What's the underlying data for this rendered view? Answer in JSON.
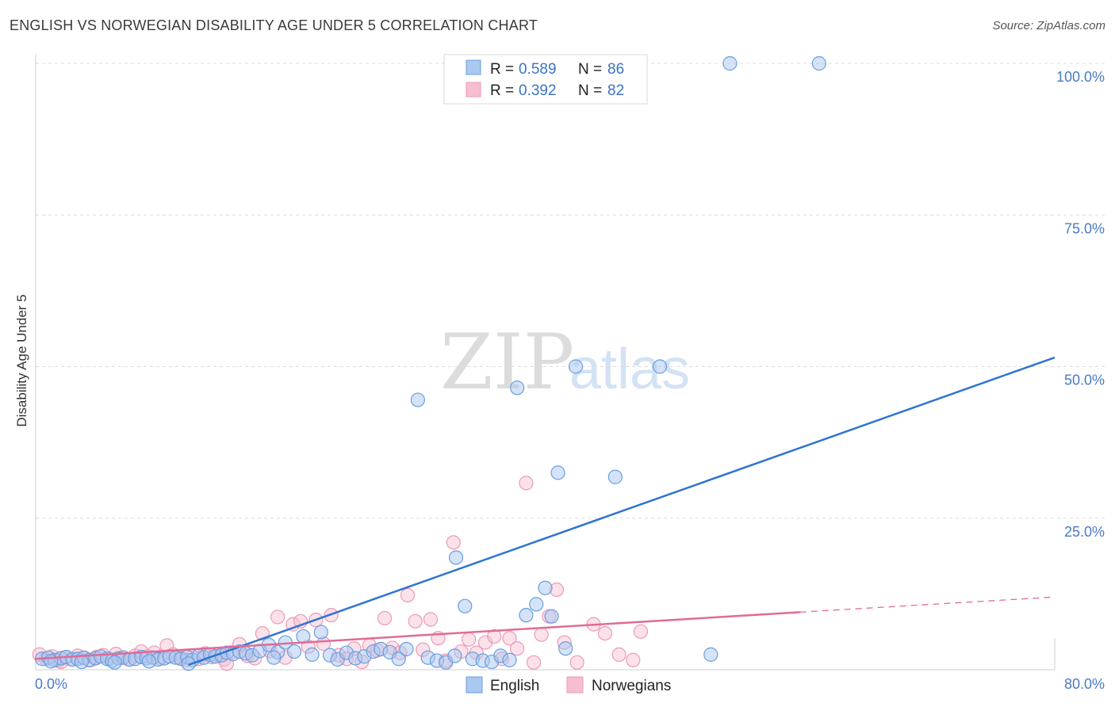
{
  "header": {
    "title": "ENGLISH VS NORWEGIAN DISABILITY AGE UNDER 5 CORRELATION CHART",
    "source": "Source: ZipAtlas.com"
  },
  "watermark": {
    "zip": "ZIP",
    "atlas": "atlas"
  },
  "legend_top": {
    "rows": [
      {
        "r_label": "R = ",
        "r_value": "0.589",
        "n_label": "N = ",
        "n_value": "86"
      },
      {
        "r_label": "R = ",
        "r_value": "0.392",
        "n_label": "N = ",
        "n_value": "82"
      }
    ]
  },
  "legend_bottom": {
    "english": "English",
    "norwegians": "Norwegians"
  },
  "colors": {
    "english_fill": "#aac8f0",
    "english_stroke": "#6b9ee0",
    "english_line": "#2f74d0",
    "norwegian_fill": "#f7bdd0",
    "norwegian_stroke": "#ec9ab5",
    "norwegian_line": "#e06b95",
    "grid": "#dcdcdc",
    "tick": "#4a7ac9"
  },
  "chart_data": {
    "type": "scatter",
    "title": "ENGLISH VS NORWEGIAN DISABILITY AGE UNDER 5 CORRELATION CHART",
    "xlabel": "",
    "ylabel": "Disability Age Under 5",
    "xlim": [
      0,
      80
    ],
    "ylim": [
      0,
      100
    ],
    "x_tick_labels": [
      "0.0%",
      "80.0%"
    ],
    "y_tick_values": [
      100,
      75,
      50,
      25
    ],
    "y_tick_labels": [
      "100.0%",
      "75.0%",
      "50.0%",
      "25.0%"
    ],
    "series": [
      {
        "name": "English",
        "r": 0.589,
        "n": 86,
        "trend": {
          "x": [
            12,
            80
          ],
          "y": [
            0.8,
            51.5
          ]
        },
        "points": [
          [
            0.5,
            1.8
          ],
          [
            1.0,
            2.0
          ],
          [
            1.5,
            1.6
          ],
          [
            2.0,
            1.9
          ],
          [
            2.4,
            2.1
          ],
          [
            2.9,
            1.7
          ],
          [
            3.3,
            1.8
          ],
          [
            3.8,
            2.0
          ],
          [
            4.2,
            1.6
          ],
          [
            4.7,
            1.9
          ],
          [
            5.1,
            2.2
          ],
          [
            5.6,
            1.8
          ],
          [
            6.0,
            1.5
          ],
          [
            6.5,
            1.9
          ],
          [
            6.9,
            2.0
          ],
          [
            7.4,
            1.7
          ],
          [
            7.8,
            1.8
          ],
          [
            8.3,
            2.1
          ],
          [
            8.7,
            1.9
          ],
          [
            9.2,
            2.0
          ],
          [
            9.6,
            1.7
          ],
          [
            10.1,
            1.9
          ],
          [
            10.5,
            2.2
          ],
          [
            11.0,
            2.0
          ],
          [
            11.4,
            1.8
          ],
          [
            11.9,
            2.1
          ],
          [
            12.3,
            1.6
          ],
          [
            12.8,
            2.3
          ],
          [
            13.2,
            2.0
          ],
          [
            13.7,
            2.5
          ],
          [
            14.1,
            2.2
          ],
          [
            14.6,
            2.4
          ],
          [
            15.0,
            2.8
          ],
          [
            15.5,
            2.6
          ],
          [
            16.0,
            3.0
          ],
          [
            16.5,
            2.7
          ],
          [
            17.0,
            2.4
          ],
          [
            17.6,
            3.1
          ],
          [
            18.3,
            4.1
          ],
          [
            19.0,
            2.9
          ],
          [
            19.6,
            4.5
          ],
          [
            20.3,
            3.0
          ],
          [
            21.0,
            5.5
          ],
          [
            21.7,
            2.5
          ],
          [
            22.4,
            6.2
          ],
          [
            23.1,
            2.4
          ],
          [
            23.7,
            1.7
          ],
          [
            24.4,
            2.8
          ],
          [
            25.1,
            1.9
          ],
          [
            25.8,
            2.2
          ],
          [
            26.5,
            3.0
          ],
          [
            27.1,
            3.4
          ],
          [
            27.8,
            2.9
          ],
          [
            28.5,
            1.8
          ],
          [
            29.1,
            3.4
          ],
          [
            30.0,
            44.5
          ],
          [
            30.8,
            2.0
          ],
          [
            31.5,
            1.5
          ],
          [
            32.2,
            1.2
          ],
          [
            32.9,
            2.3
          ],
          [
            33.7,
            10.5
          ],
          [
            34.3,
            1.8
          ],
          [
            35.1,
            1.5
          ],
          [
            35.8,
            1.3
          ],
          [
            36.5,
            2.3
          ],
          [
            37.2,
            1.6
          ],
          [
            37.8,
            46.5
          ],
          [
            38.5,
            9.0
          ],
          [
            39.3,
            10.8
          ],
          [
            40.0,
            13.5
          ],
          [
            40.5,
            8.8
          ],
          [
            41.0,
            32.5
          ],
          [
            41.6,
            3.5
          ],
          [
            42.4,
            50.0
          ],
          [
            45.5,
            31.8
          ],
          [
            49.0,
            50.0
          ],
          [
            54.5,
            100
          ],
          [
            53.0,
            2.5
          ],
          [
            61.5,
            100
          ],
          [
            1.2,
            1.4
          ],
          [
            3.6,
            1.3
          ],
          [
            6.2,
            1.2
          ],
          [
            8.9,
            1.4
          ],
          [
            12.0,
            1.0
          ],
          [
            18.7,
            2.0
          ],
          [
            33.0,
            18.5
          ]
        ]
      },
      {
        "name": "Norwegians",
        "r": 0.392,
        "n": 82,
        "trend": {
          "x": [
            0,
            60
          ],
          "y": [
            1.8,
            9.5
          ]
        },
        "trend_dashed": {
          "x": [
            60,
            80
          ],
          "y": [
            9.5,
            12.0
          ]
        },
        "points": [
          [
            0.3,
            2.5
          ],
          [
            0.8,
            1.8
          ],
          [
            1.3,
            2.2
          ],
          [
            1.8,
            1.5
          ],
          [
            2.3,
            2.0
          ],
          [
            2.8,
            1.7
          ],
          [
            3.3,
            2.3
          ],
          [
            3.8,
            1.9
          ],
          [
            4.3,
            1.6
          ],
          [
            4.8,
            2.1
          ],
          [
            5.3,
            2.4
          ],
          [
            5.8,
            1.8
          ],
          [
            6.3,
            2.6
          ],
          [
            6.8,
            2.0
          ],
          [
            7.3,
            1.7
          ],
          [
            7.8,
            2.3
          ],
          [
            8.3,
            3.0
          ],
          [
            8.8,
            2.2
          ],
          [
            9.3,
            2.8
          ],
          [
            9.8,
            1.9
          ],
          [
            10.3,
            4.0
          ],
          [
            10.8,
            2.5
          ],
          [
            11.3,
            2.0
          ],
          [
            11.8,
            1.6
          ],
          [
            12.3,
            2.2
          ],
          [
            12.8,
            1.8
          ],
          [
            13.3,
            2.7
          ],
          [
            13.8,
            2.1
          ],
          [
            14.3,
            2.5
          ],
          [
            14.8,
            1.7
          ],
          [
            15.4,
            2.9
          ],
          [
            16.0,
            4.2
          ],
          [
            16.6,
            2.3
          ],
          [
            17.2,
            1.9
          ],
          [
            17.8,
            6.0
          ],
          [
            18.4,
            3.1
          ],
          [
            19.0,
            8.7
          ],
          [
            19.6,
            2.0
          ],
          [
            20.2,
            7.5
          ],
          [
            20.8,
            8.0
          ],
          [
            21.4,
            3.8
          ],
          [
            22.0,
            8.2
          ],
          [
            22.6,
            4.3
          ],
          [
            23.2,
            9.0
          ],
          [
            23.8,
            2.4
          ],
          [
            24.4,
            1.8
          ],
          [
            25.0,
            3.5
          ],
          [
            25.6,
            1.3
          ],
          [
            26.2,
            4.0
          ],
          [
            26.8,
            3.2
          ],
          [
            27.4,
            8.5
          ],
          [
            28.0,
            3.6
          ],
          [
            28.6,
            2.8
          ],
          [
            29.2,
            12.3
          ],
          [
            29.8,
            8.0
          ],
          [
            30.4,
            3.3
          ],
          [
            31.0,
            8.3
          ],
          [
            31.6,
            5.2
          ],
          [
            32.2,
            1.5
          ],
          [
            32.8,
            21.0
          ],
          [
            33.4,
            3.0
          ],
          [
            34.0,
            5.0
          ],
          [
            34.6,
            2.8
          ],
          [
            35.3,
            4.5
          ],
          [
            36.0,
            5.5
          ],
          [
            36.6,
            1.8
          ],
          [
            37.2,
            5.2
          ],
          [
            37.8,
            3.5
          ],
          [
            38.5,
            30.8
          ],
          [
            39.1,
            1.2
          ],
          [
            39.7,
            5.8
          ],
          [
            40.3,
            8.8
          ],
          [
            40.9,
            13.2
          ],
          [
            41.5,
            4.5
          ],
          [
            42.5,
            1.2
          ],
          [
            43.8,
            7.5
          ],
          [
            44.7,
            6.0
          ],
          [
            45.8,
            2.5
          ],
          [
            46.9,
            1.6
          ],
          [
            47.5,
            6.3
          ],
          [
            2.0,
            1.3
          ],
          [
            15.0,
            1.0
          ]
        ]
      }
    ]
  }
}
